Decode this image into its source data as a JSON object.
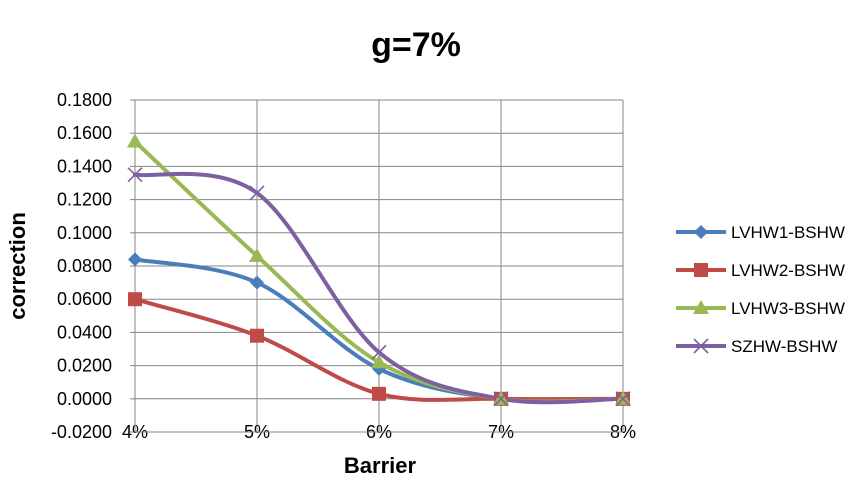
{
  "chart_data": {
    "type": "line",
    "title": "g=7%",
    "xlabel": "Barrier",
    "ylabel": "correction",
    "categories": [
      "4%",
      "5%",
      "6%",
      "7%",
      "8%"
    ],
    "ylim": [
      -0.02,
      0.18
    ],
    "yticks": [
      "0.1800",
      "0.1600",
      "0.1400",
      "0.1200",
      "0.1000",
      "0.0800",
      "0.0600",
      "0.0400",
      "0.0200",
      "0.0000",
      "-0.0200"
    ],
    "ytick_values": [
      0.18,
      0.16,
      0.14,
      0.12,
      0.1,
      0.08,
      0.06,
      0.04,
      0.02,
      0.0,
      -0.02
    ],
    "grid": true,
    "smooth": true,
    "legend_position": "right",
    "series": [
      {
        "name": "LVHW1-BSHW",
        "values": [
          0.084,
          0.07,
          0.018,
          0.0,
          0.0
        ],
        "color": "#4a7ebb",
        "marker": "diamond"
      },
      {
        "name": "LVHW2-BSHW",
        "values": [
          0.06,
          0.038,
          0.003,
          0.0,
          0.0
        ],
        "color": "#be4b48",
        "marker": "square"
      },
      {
        "name": "LVHW3-BSHW",
        "values": [
          0.155,
          0.086,
          0.022,
          0.0,
          0.0
        ],
        "color": "#98b954",
        "marker": "triangle"
      },
      {
        "name": "SZHW-BSHW",
        "values": [
          0.135,
          0.124,
          0.028,
          0.0,
          0.0
        ],
        "color": "#7d60a0",
        "marker": "x"
      }
    ]
  }
}
